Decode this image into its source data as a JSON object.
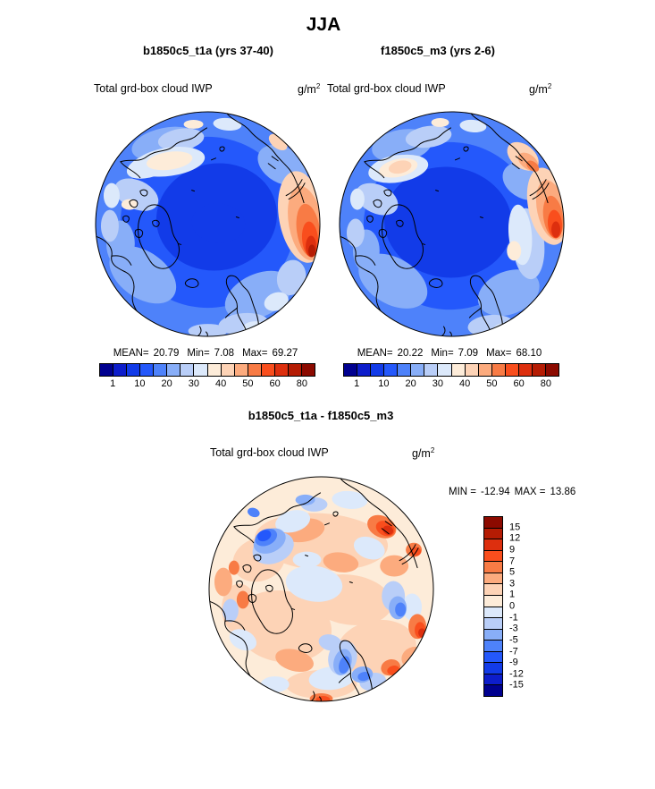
{
  "title": "JJA",
  "panels": [
    {
      "subtitle": "b1850c5_t1a (yrs 37-40)",
      "field_label": "Total grd-box cloud IWP",
      "units_base": "g/m",
      "units_exp": "2",
      "stats": {
        "mean_label": "MEAN=",
        "mean": "20.79",
        "min_label": "Min=",
        "min": "7.08",
        "max_label": "Max=",
        "max": "69.27"
      }
    },
    {
      "subtitle": "f1850c5_m3 (yrs 2-6)",
      "field_label": "Total grd-box cloud IWP",
      "units_base": "g/m",
      "units_exp": "2",
      "stats": {
        "mean_label": "MEAN=",
        "mean": "20.22",
        "min_label": "Min=",
        "min": "7.09",
        "max_label": "Max=",
        "max": "68.10"
      }
    }
  ],
  "diff": {
    "title": "b1850c5_t1a - f1850c5_m3",
    "field_label": "Total grd-box cloud IWP",
    "units_base": "g/m",
    "units_exp": "2",
    "min_label": "MIN =",
    "min": "-12.94",
    "max_label": "MAX =",
    "max": "13.86"
  },
  "colorbar": {
    "colors": [
      "#00008f",
      "#0d1dcb",
      "#123be8",
      "#2458fb",
      "#4e82fa",
      "#88aef8",
      "#b9cef8",
      "#dce9fb",
      "#fdecd9",
      "#fdd3b6",
      "#fcab7e",
      "#f87b45",
      "#f94e1d",
      "#dd2f0e",
      "#b51c04",
      "#8c0a00"
    ],
    "tick_labels": [
      "1",
      "10",
      "20",
      "30",
      "40",
      "50",
      "60",
      "80"
    ]
  },
  "diff_colorbar": {
    "colors": [
      "#8c0a00",
      "#b51c04",
      "#dd2f0e",
      "#f94e1d",
      "#f87b45",
      "#fcab7e",
      "#fdd3b6",
      "#fdecd9",
      "#dce9fb",
      "#b9cef8",
      "#88aef8",
      "#4e82fa",
      "#2458fb",
      "#123be8",
      "#0d1dcb",
      "#00008f"
    ],
    "tick_labels": [
      "15",
      "12",
      "9",
      "7",
      "5",
      "3",
      "1",
      "0",
      "-1",
      "-3",
      "-5",
      "-7",
      "-9",
      "-12",
      "-15"
    ]
  },
  "chart_data": [
    {
      "type": "heatmap",
      "subtype": "north-polar-stereographic-contour-map",
      "season": "JJA",
      "title": "b1850c5_t1a (yrs 37-40)",
      "variable": "Total grd-box cloud IWP",
      "units": "g/m2",
      "stats": {
        "mean": 20.79,
        "min": 7.08,
        "max": 69.27
      },
      "contour_levels": [
        1,
        5,
        10,
        15,
        20,
        25,
        30,
        35,
        40,
        45,
        50,
        55,
        60,
        70,
        80
      ],
      "labeled_levels": [
        1,
        10,
        20,
        30,
        40,
        50,
        60,
        80
      ],
      "palette": "blue-white-red 16 colors",
      "colorbar_orientation": "horizontal"
    },
    {
      "type": "heatmap",
      "subtype": "north-polar-stereographic-contour-map",
      "season": "JJA",
      "title": "f1850c5_m3 (yrs 2-6)",
      "variable": "Total grd-box cloud IWP",
      "units": "g/m2",
      "stats": {
        "mean": 20.22,
        "min": 7.09,
        "max": 68.1
      },
      "contour_levels": [
        1,
        5,
        10,
        15,
        20,
        25,
        30,
        35,
        40,
        45,
        50,
        55,
        60,
        70,
        80
      ],
      "labeled_levels": [
        1,
        10,
        20,
        30,
        40,
        50,
        60,
        80
      ],
      "palette": "blue-white-red 16 colors",
      "colorbar_orientation": "horizontal"
    },
    {
      "type": "heatmap",
      "subtype": "north-polar-stereographic-contour-map",
      "season": "JJA",
      "title": "b1850c5_t1a - f1850c5_m3",
      "variable": "Total grd-box cloud IWP",
      "units": "g/m2",
      "stats": {
        "min": -12.94,
        "max": 13.86
      },
      "contour_levels": [
        -15,
        -12,
        -9,
        -7,
        -5,
        -3,
        -1,
        0,
        1,
        3,
        5,
        7,
        9,
        12,
        15
      ],
      "labeled_levels": [
        15,
        12,
        9,
        7,
        5,
        3,
        1,
        0,
        -1,
        -3,
        -5,
        -7,
        -9,
        -12,
        -15
      ],
      "palette": "red-white-blue 16 colors (red = positive, top)",
      "colorbar_orientation": "vertical"
    }
  ]
}
